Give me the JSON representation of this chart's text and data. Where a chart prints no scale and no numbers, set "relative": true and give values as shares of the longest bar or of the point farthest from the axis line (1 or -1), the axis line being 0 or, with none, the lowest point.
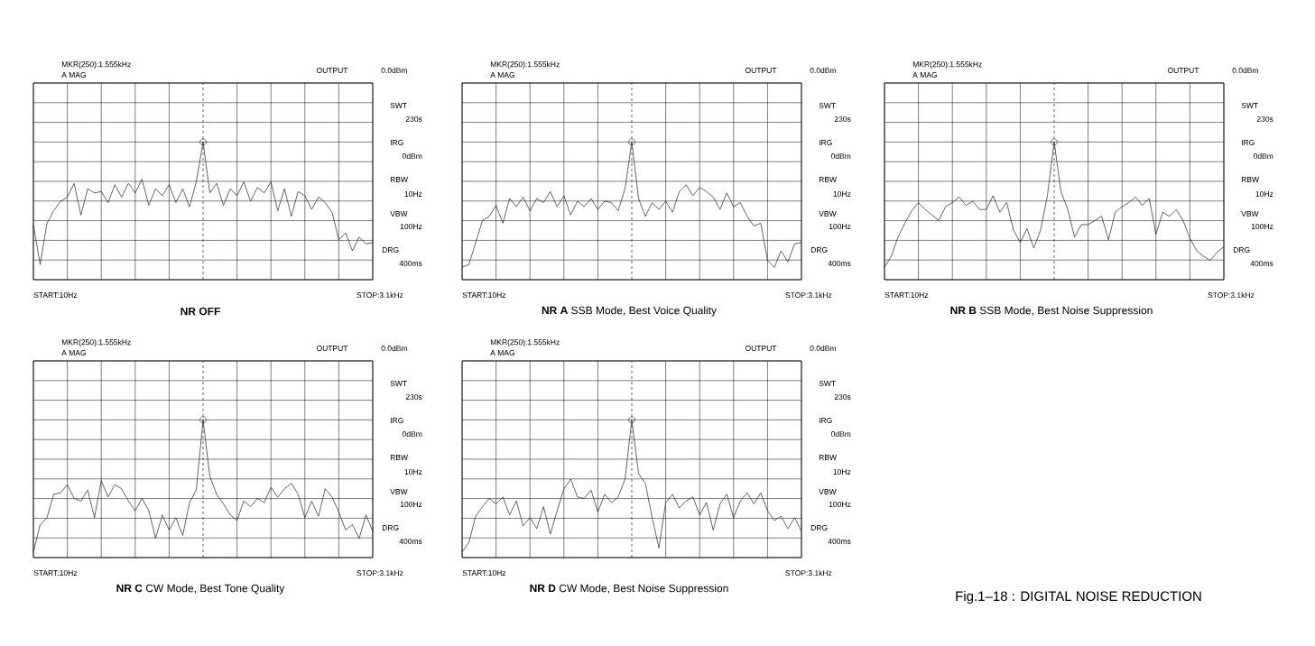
{
  "chart_data": [
    {
      "type": "line",
      "title": "**NR OFF**",
      "relative": true,
      "grid": true,
      "categories": [
        null,
        null,
        null,
        null,
        null,
        null,
        null,
        null,
        null,
        null,
        null,
        null,
        null,
        null,
        null,
        null,
        null,
        null,
        null,
        null,
        null,
        null,
        null,
        null,
        null,
        null,
        null,
        null,
        null,
        null,
        null,
        null,
        null,
        null,
        null,
        null,
        null,
        null,
        null,
        null,
        null,
        null,
        null,
        null,
        null,
        null,
        null,
        null,
        null,
        null,
        null
      ],
      "series": [
        {
          "color": "#222222",
          "values": [
            0.4,
            0.11,
            0.41,
            0.5,
            0.57,
            0.6,
            0.7,
            0.47,
            0.66,
            0.63,
            0.64,
            0.56,
            0.69,
            0.6,
            0.7,
            0.63,
            0.73,
            0.54,
            0.66,
            0.61,
            0.69,
            0.56,
            0.66,
            0.53,
            0.71,
            1,
            0.63,
            0.7,
            0.54,
            0.66,
            0.61,
            0.71,
            0.57,
            0.67,
            0.63,
            0.71,
            0.5,
            0.66,
            0.46,
            0.64,
            0.61,
            0.51,
            0.6,
            0.56,
            0.49,
            0.29,
            0.34,
            0.21,
            0.31,
            0.26,
            0.27
          ]
        }
      ],
      "ref_lines": [
        {
          "axis": "x",
          "line_style": "dashed"
        }
      ],
      "annotations": [
        "MKR(250):1.555kHz",
        "A  MAG",
        "OUTPUT",
        "0.0dBm",
        "SWT",
        "230s",
        "IRG",
        "0dBm",
        "RBW",
        "10Hz",
        "VBW",
        "100Hz",
        "DRG",
        "400ms",
        "START:10Hz",
        "STOP:3.1kHz"
      ]
    },
    {
      "type": "line",
      "title": "**NR A** SSB Mode, Best Voice Quality",
      "relative": true,
      "grid": true,
      "categories": [
        null,
        null,
        null,
        null,
        null,
        null,
        null,
        null,
        null,
        null,
        null,
        null,
        null,
        null,
        null,
        null,
        null,
        null,
        null,
        null,
        null,
        null,
        null,
        null,
        null,
        null,
        null,
        null,
        null,
        null,
        null,
        null,
        null,
        null,
        null,
        null,
        null,
        null,
        null,
        null,
        null,
        null,
        null,
        null,
        null,
        null,
        null,
        null,
        null,
        null,
        null
      ],
      "series": [
        {
          "color": "#222222",
          "values": [
            0.09,
            0.11,
            0.27,
            0.43,
            0.46,
            0.54,
            0.41,
            0.59,
            0.53,
            0.6,
            0.5,
            0.59,
            0.56,
            0.64,
            0.53,
            0.61,
            0.47,
            0.57,
            0.53,
            0.59,
            0.51,
            0.57,
            0.56,
            0.5,
            0.66,
            1,
            0.59,
            0.46,
            0.56,
            0.51,
            0.57,
            0.49,
            0.64,
            0.69,
            0.61,
            0.67,
            0.64,
            0.6,
            0.51,
            0.63,
            0.53,
            0.56,
            0.46,
            0.39,
            0.41,
            0.14,
            0.09,
            0.21,
            0.13,
            0.26,
            0.27
          ]
        }
      ],
      "ref_lines": [
        {
          "axis": "x",
          "line_style": "dashed"
        }
      ],
      "annotations": [
        "MKR(250):1.555kHz",
        "A  MAG",
        "OUTPUT",
        "0.0dBm",
        "SWT",
        "230s",
        "IRG",
        "0dBm",
        "RBW",
        "10Hz",
        "VBW",
        "100Hz",
        "DRG",
        "400ms",
        "START:10Hz",
        "STOP:3.1kHz"
      ]
    },
    {
      "type": "line",
      "title": "**NR B** SSB Mode, Best Noise Suppression",
      "relative": true,
      "grid": true,
      "categories": [
        null,
        null,
        null,
        null,
        null,
        null,
        null,
        null,
        null,
        null,
        null,
        null,
        null,
        null,
        null,
        null,
        null,
        null,
        null,
        null,
        null,
        null,
        null,
        null,
        null,
        null,
        null,
        null,
        null,
        null,
        null,
        null,
        null,
        null,
        null,
        null,
        null,
        null,
        null,
        null,
        null,
        null,
        null,
        null,
        null,
        null,
        null,
        null,
        null,
        null,
        null
      ],
      "series": [
        {
          "color": "#222222",
          "values": [
            0.09,
            0.17,
            0.31,
            0.41,
            0.5,
            0.56,
            0.51,
            0.47,
            0.43,
            0.53,
            0.56,
            0.6,
            0.54,
            0.57,
            0.51,
            0.51,
            0.61,
            0.49,
            0.56,
            0.36,
            0.27,
            0.37,
            0.23,
            0.36,
            0.61,
            1,
            0.64,
            0.51,
            0.31,
            0.4,
            0.4,
            0.43,
            0.46,
            0.29,
            0.49,
            0.53,
            0.56,
            0.6,
            0.54,
            0.59,
            0.33,
            0.49,
            0.46,
            0.51,
            0.43,
            0.3,
            0.21,
            0.17,
            0.14,
            0.2,
            0.24
          ]
        }
      ],
      "ref_lines": [
        {
          "axis": "x",
          "line_style": "dashed"
        }
      ],
      "annotations": [
        "MKR(250):1.555kHz",
        "A  MAG",
        "OUTPUT",
        "0.0dBm",
        "SWT",
        "230s",
        "IRG",
        "0dBm",
        "RBW",
        "10Hz",
        "VBW",
        "100Hz",
        "DRG",
        "400ms",
        "START:10Hz",
        "STOP:3.1kHz"
      ]
    },
    {
      "type": "line",
      "title": "**NR C** CW Mode, Best Tone Quality",
      "relative": true,
      "grid": true,
      "categories": [
        null,
        null,
        null,
        null,
        null,
        null,
        null,
        null,
        null,
        null,
        null,
        null,
        null,
        null,
        null,
        null,
        null,
        null,
        null,
        null,
        null,
        null,
        null,
        null,
        null,
        null,
        null,
        null,
        null,
        null,
        null,
        null,
        null,
        null,
        null,
        null,
        null,
        null,
        null,
        null,
        null,
        null,
        null,
        null,
        null,
        null,
        null,
        null,
        null,
        null,
        null
      ],
      "series": [
        {
          "color": "#222222",
          "values": [
            0.04,
            0.24,
            0.29,
            0.46,
            0.47,
            0.53,
            0.43,
            0.41,
            0.49,
            0.29,
            0.56,
            0.44,
            0.53,
            0.5,
            0.41,
            0.34,
            0.43,
            0.34,
            0.14,
            0.31,
            0.2,
            0.29,
            0.16,
            0.4,
            0.49,
            1,
            0.59,
            0.46,
            0.39,
            0.31,
            0.27,
            0.41,
            0.37,
            0.43,
            0.4,
            0.51,
            0.44,
            0.5,
            0.54,
            0.46,
            0.29,
            0.41,
            0.3,
            0.5,
            0.44,
            0.33,
            0.2,
            0.24,
            0.14,
            0.31,
            0.19
          ]
        }
      ],
      "ref_lines": [
        {
          "axis": "x",
          "line_style": "dashed"
        }
      ],
      "annotations": [
        "MKR(250):1.555kHz",
        "A  MAG",
        "OUTPUT",
        "0.0dBm",
        "SWT",
        "230s",
        "IRG",
        "0dBm",
        "RBW",
        "10Hz",
        "VBW",
        "100Hz",
        "DRG",
        "400ms",
        "START:10Hz",
        "STOP:3.1kHz"
      ]
    },
    {
      "type": "line",
      "title": "**NR D** CW Mode, Best Noise Suppression",
      "relative": true,
      "grid": true,
      "categories": [
        null,
        null,
        null,
        null,
        null,
        null,
        null,
        null,
        null,
        null,
        null,
        null,
        null,
        null,
        null,
        null,
        null,
        null,
        null,
        null,
        null,
        null,
        null,
        null,
        null,
        null,
        null,
        null,
        null,
        null,
        null,
        null,
        null,
        null,
        null,
        null,
        null,
        null,
        null,
        null,
        null,
        null,
        null,
        null,
        null,
        null,
        null,
        null,
        null,
        null,
        null
      ],
      "series": [
        {
          "color": "#222222",
          "values": [
            0.04,
            0.11,
            0.3,
            0.37,
            0.43,
            0.39,
            0.44,
            0.31,
            0.41,
            0.23,
            0.29,
            0.21,
            0.37,
            0.17,
            0.34,
            0.5,
            0.57,
            0.44,
            0.43,
            0.49,
            0.33,
            0.46,
            0.4,
            0.44,
            0.57,
            1,
            0.61,
            0.54,
            0.29,
            0.07,
            0.4,
            0.46,
            0.36,
            0.41,
            0.44,
            0.31,
            0.4,
            0.2,
            0.39,
            0.46,
            0.29,
            0.41,
            0.47,
            0.39,
            0.47,
            0.34,
            0.27,
            0.3,
            0.21,
            0.29,
            0.19
          ]
        }
      ],
      "ref_lines": [
        {
          "axis": "x",
          "line_style": "dashed"
        }
      ],
      "annotations": [
        "MKR(250):1.555kHz",
        "A  MAG",
        "OUTPUT",
        "0.0dBm",
        "SWT",
        "230s",
        "IRG",
        "0dBm",
        "RBW",
        "10Hz",
        "VBW",
        "100Hz",
        "DRG",
        "400ms",
        "START:10Hz",
        "STOP:3.1kHz"
      ]
    },
    {
      "type": "other",
      "title": "Fig.1–18 : DIGITAL NOISE REDUCTION"
    }
  ]
}
